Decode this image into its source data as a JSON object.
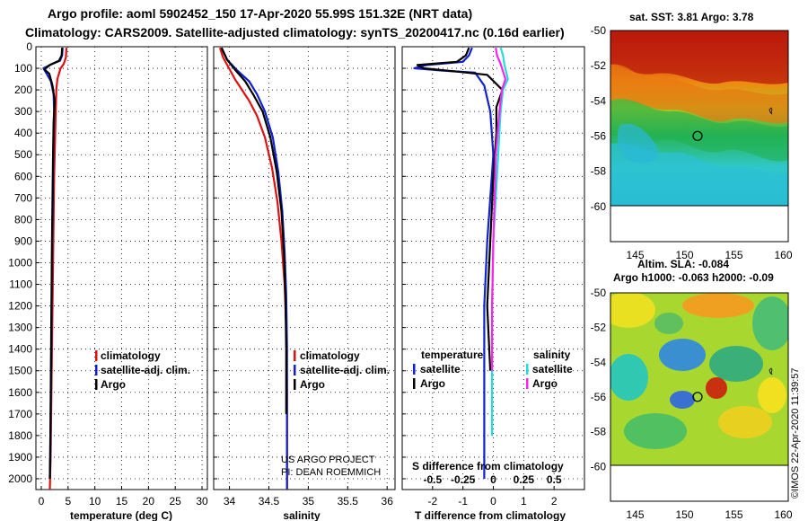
{
  "header": {
    "line1": "Argo profile: aoml 5902452_150 17-Apr-2020 55.99S 151.32E (NRT data)",
    "line2": "Climatology: CARS2009. Satellite-adjusted climatology: synTS_20200417.nc (0.16d earlier)"
  },
  "colors": {
    "climatology": "#dd1111",
    "satellite": "#1122cc",
    "argo": "#000000",
    "sat_salinity": "#22dddd",
    "argo_salinity": "#ff22ee"
  },
  "chart_data": [
    {
      "type": "line",
      "name": "temperature",
      "xlabel": "temperature (deg C)",
      "xlim": [
        -1,
        31
      ],
      "xticks": [
        "0",
        "5",
        "10",
        "15",
        "20",
        "25",
        "30"
      ],
      "ylim": [
        0,
        2050
      ],
      "yticks": [
        "0",
        "100",
        "200",
        "300",
        "400",
        "500",
        "600",
        "700",
        "800",
        "900",
        "1000",
        "1100",
        "1200",
        "1300",
        "1400",
        "1500",
        "1600",
        "1700",
        "1800",
        "1900",
        "2000"
      ],
      "legend": [
        "climatology",
        "satellite-adj. clim.",
        "Argo"
      ],
      "series": [
        {
          "name": "climatology",
          "color": "#dd1111",
          "x": [
            4.7,
            4.6,
            4.2,
            3.6,
            3.0,
            2.8,
            2.7,
            2.6,
            2.5,
            2.4,
            2.3,
            2.2,
            2.1,
            2.0,
            1.9,
            1.8,
            1.75,
            1.6
          ],
          "y": [
            5,
            50,
            80,
            100,
            150,
            200,
            300,
            400,
            500,
            600,
            800,
            1000,
            1200,
            1400,
            1600,
            1800,
            1900,
            2050
          ]
        },
        {
          "name": "satellite-adj. clim.",
          "color": "#1122cc",
          "x": [
            4.0,
            3.9,
            3.5,
            2.0,
            0.4,
            0.9,
            1.8,
            2.3,
            2.4,
            2.3,
            2.2,
            2.1,
            2.0,
            1.9,
            1.8,
            1.7,
            1.6
          ],
          "y": [
            5,
            40,
            65,
            80,
            100,
            120,
            160,
            220,
            300,
            400,
            600,
            800,
            1000,
            1300,
            1600,
            1900,
            2000
          ]
        },
        {
          "name": "Argo",
          "color": "#000000",
          "x": [
            3.9,
            3.8,
            3.3,
            1.6,
            0.6,
            1.5,
            2.1,
            2.5,
            2.3,
            2.2,
            2.1,
            2.0,
            1.9,
            1.8,
            1.7,
            1.6
          ],
          "y": [
            5,
            40,
            65,
            85,
            105,
            125,
            180,
            250,
            350,
            500,
            700,
            900,
            1200,
            1500,
            1800,
            2000
          ]
        }
      ]
    },
    {
      "type": "line",
      "name": "salinity",
      "xlabel": "salinity",
      "xlim": [
        33.8,
        36.1
      ],
      "xticks": [
        "34",
        "34.5",
        "35",
        "35.5",
        "36"
      ],
      "ylim": [
        0,
        2050
      ],
      "legend": [
        "climatology",
        "satellite-adj. clim.",
        "Argo"
      ],
      "annotation": [
        "US ARGO PROJECT",
        "PI: DEAN ROEMMICH"
      ],
      "series": [
        {
          "name": "climatology",
          "color": "#dd1111",
          "x": [
            33.88,
            33.92,
            33.98,
            34.07,
            34.16,
            34.25,
            34.35,
            34.45,
            34.54,
            34.61,
            34.66,
            34.7,
            34.72,
            34.73,
            34.73,
            34.73
          ],
          "y": [
            5,
            50,
            90,
            150,
            200,
            250,
            320,
            420,
            560,
            720,
            900,
            1100,
            1300,
            1600,
            1900,
            2050
          ]
        },
        {
          "name": "satellite-adj. clim.",
          "color": "#1122cc",
          "x": [
            33.9,
            33.97,
            34.1,
            34.25,
            34.35,
            34.45,
            34.55,
            34.62,
            34.67,
            34.7,
            34.72,
            34.73,
            34.73,
            34.73
          ],
          "y": [
            5,
            60,
            110,
            160,
            220,
            300,
            420,
            580,
            760,
            950,
            1150,
            1400,
            1700,
            2050
          ]
        },
        {
          "name": "Argo",
          "color": "#000000",
          "x": [
            33.9,
            33.97,
            34.08,
            34.2,
            34.3,
            34.42,
            34.52,
            34.6,
            34.66,
            34.69,
            34.71,
            34.72,
            34.72
          ],
          "y": [
            5,
            60,
            110,
            160,
            220,
            300,
            420,
            580,
            760,
            950,
            1150,
            1400,
            1700
          ]
        }
      ]
    },
    {
      "type": "line",
      "name": "difference from climatology",
      "xlabel": "T difference from climatology",
      "xlim": [
        -3.0,
        3.0
      ],
      "xticks": [
        "-2",
        "-1",
        "0",
        "1",
        "2"
      ],
      "sxlabel": "S difference from climatology",
      "sxticks": [
        "-0.5",
        "-0.25",
        "0",
        "0.25",
        "0.5"
      ],
      "slim": [
        -0.75,
        0.75
      ],
      "ylim": [
        0,
        2050
      ],
      "legend_titles": [
        "temperature",
        "salinity"
      ],
      "legend_left": [
        "satellite",
        "Argo"
      ],
      "legend_right": [
        "satellite",
        "Argo"
      ],
      "series": [
        {
          "name": "satellite (temperature)",
          "color": "#1122cc",
          "x": [
            -0.7,
            -0.8,
            -1.0,
            -2.2,
            -2.6,
            -1.7,
            -0.6,
            -0.3,
            -0.1,
            0.0,
            -0.1,
            -0.2,
            -0.3,
            -0.3,
            -0.3,
            -0.3
          ],
          "y": [
            5,
            40,
            70,
            85,
            100,
            110,
            120,
            180,
            300,
            500,
            700,
            900,
            1200,
            1500,
            1800,
            2000
          ]
        },
        {
          "name": "Argo (temperature)",
          "color": "#000000",
          "x": [
            -0.8,
            -0.9,
            -1.2,
            -2.5,
            -2.3,
            -1.2,
            -0.2,
            0.3,
            0.1,
            0.1,
            0.0,
            -0.1,
            -0.2,
            -0.1
          ],
          "y": [
            5,
            40,
            70,
            85,
            100,
            115,
            130,
            200,
            280,
            400,
            600,
            900,
            1200,
            1500
          ]
        },
        {
          "name": "satellite (salinity)",
          "color": "#22dddd",
          "x": [
            0.06,
            0.08,
            0.09,
            0.12,
            0.08,
            0.06,
            0.04,
            0.02,
            0.0,
            -0.01,
            -0.01,
            -0.01
          ],
          "y": [
            5,
            40,
            80,
            150,
            200,
            300,
            500,
            700,
            900,
            1200,
            1500,
            1800
          ]
        },
        {
          "name": "Argo (salinity)",
          "color": "#ff22ee",
          "x": [
            0.02,
            0.03,
            0.06,
            0.1,
            0.07,
            0.05,
            0.02,
            0.01,
            0.0,
            -0.01,
            -0.01
          ],
          "y": [
            5,
            40,
            80,
            150,
            200,
            300,
            500,
            700,
            900,
            1200,
            1500
          ]
        }
      ]
    },
    {
      "type": "heatmap",
      "name": "sat SST map",
      "title": "sat. SST: 3.81 Argo: 3.78",
      "xticks": [
        "145",
        "150",
        "155",
        "160"
      ],
      "yticks": [
        "-50",
        "-52",
        "-54",
        "-56",
        "-58",
        "-60"
      ],
      "xlim": [
        142.5,
        160.5
      ],
      "ylim": [
        -62,
        -50
      ],
      "argo_position": {
        "lon": 151.32,
        "lat": -55.99
      }
    },
    {
      "type": "heatmap",
      "name": "altimetry SLA map",
      "title_lines": [
        "Altim. SLA: -0.084",
        "Argo h1000: -0.063 h2000: -0.09"
      ],
      "xticks": [
        "145",
        "150",
        "155",
        "160"
      ],
      "yticks": [
        "-50",
        "-52",
        "-54",
        "-56",
        "-58",
        "-60"
      ],
      "xlim": [
        142.5,
        160.5
      ],
      "ylim": [
        -62,
        -50
      ],
      "argo_position": {
        "lon": 151.32,
        "lat": -55.99
      }
    }
  ],
  "footer": {
    "stamp": "©IMOS 22-Apr-2020 11:39:57"
  }
}
